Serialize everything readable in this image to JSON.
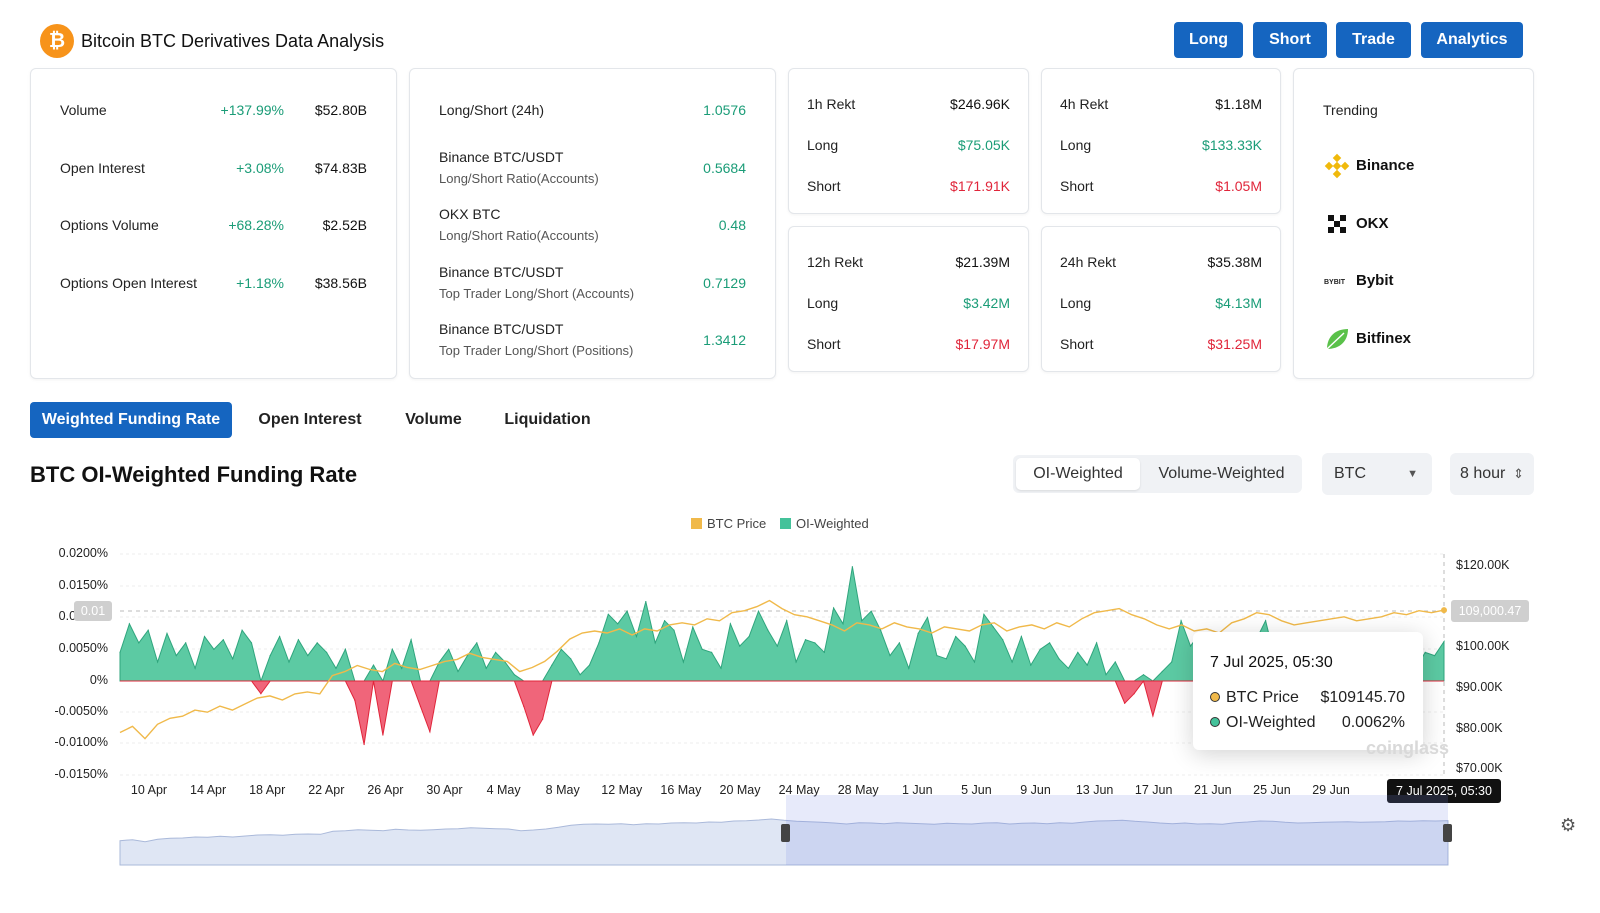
{
  "header": {
    "logo_glyph": "₿",
    "title": "Bitcoin BTC Derivatives Data Analysis",
    "buttons": [
      "Long",
      "Short",
      "Trade",
      "Analytics"
    ]
  },
  "colors": {
    "accent": "#1565c0",
    "positive": "#1a9c77",
    "negative": "#e0253a",
    "price_line": "#f0b94a",
    "oi_fill": "#44c29a"
  },
  "market": {
    "rows": [
      {
        "label": "Volume",
        "change": "+137.99%",
        "value": "$52.80B"
      },
      {
        "label": "Open Interest",
        "change": "+3.08%",
        "value": "$74.83B"
      },
      {
        "label": "Options Volume",
        "change": "+68.28%",
        "value": "$2.52B"
      },
      {
        "label": "Options Open Interest",
        "change": "+1.18%",
        "value": "$38.56B"
      }
    ]
  },
  "ratios": {
    "rows": [
      {
        "label": "Long/Short (24h)",
        "sub": "",
        "value": "1.0576"
      },
      {
        "label": "Binance BTC/USDT",
        "sub": "Long/Short Ratio(Accounts)",
        "value": "0.5684"
      },
      {
        "label": "OKX BTC",
        "sub": "Long/Short Ratio(Accounts)",
        "value": "0.48"
      },
      {
        "label": "Binance BTC/USDT",
        "sub": "Top Trader Long/Short (Accounts)",
        "value": "0.7129"
      },
      {
        "label": "Binance BTC/USDT",
        "sub": "Top Trader Long/Short (Positions)",
        "value": "1.3412"
      }
    ]
  },
  "rekt": [
    {
      "title": "1h Rekt",
      "total": "$246.96K",
      "long_label": "Long",
      "long": "$75.05K",
      "short_label": "Short",
      "short": "$171.91K"
    },
    {
      "title": "4h Rekt",
      "total": "$1.18M",
      "long_label": "Long",
      "long": "$133.33K",
      "short_label": "Short",
      "short": "$1.05M"
    },
    {
      "title": "12h Rekt",
      "total": "$21.39M",
      "long_label": "Long",
      "long": "$3.42M",
      "short_label": "Short",
      "short": "$17.97M"
    },
    {
      "title": "24h Rekt",
      "total": "$35.38M",
      "long_label": "Long",
      "long": "$4.13M",
      "short_label": "Short",
      "short": "$31.25M"
    }
  ],
  "trending": {
    "title": "Trending",
    "items": [
      "Binance",
      "OKX",
      "Bybit",
      "Bitfinex"
    ],
    "bybit_logo_text": "BYBIT"
  },
  "tabs": [
    "Weighted Funding Rate",
    "Open Interest",
    "Volume",
    "Liquidation"
  ],
  "chart_header": {
    "title": "BTC OI-Weighted Funding Rate",
    "seg": [
      "OI-Weighted",
      "Volume-Weighted"
    ],
    "coin": "BTC",
    "interval": "8 hour"
  },
  "legend": [
    "BTC Price",
    "OI-Weighted"
  ],
  "tooltip": {
    "date": "7 Jul 2025, 05:30",
    "price_label": "BTC Price",
    "price": "$109145.70",
    "oi_label": "OI-Weighted",
    "oi": "0.0062%"
  },
  "tags": {
    "left": "0.01",
    "right": "109,000.47",
    "x": "7 Jul 2025, 05:30"
  },
  "watermark": "coinglass",
  "chart_data": {
    "type": "area",
    "y_left_ticks": [
      "0.0200%",
      "0.0150%",
      "0.0100%",
      "0.0050%",
      "0%",
      "-0.0050%",
      "-0.0100%",
      "-0.0150%"
    ],
    "y_right_ticks": [
      "$120.00K",
      "$100.00K",
      "$90.00K",
      "$80.00K",
      "$70.00K"
    ],
    "x_ticks": [
      "10 Apr",
      "14 Apr",
      "18 Apr",
      "22 Apr",
      "26 Apr",
      "30 Apr",
      "4 May",
      "8 May",
      "12 May",
      "16 May",
      "20 May",
      "24 May",
      "28 May",
      "1 Jun",
      "5 Jun",
      "9 Jun",
      "13 Jun",
      "17 Jun",
      "21 Jun",
      "25 Jun",
      "29 Jun",
      "3"
    ],
    "ylim_left": [
      -0.015,
      0.02
    ],
    "ylim_right": [
      70000,
      120000
    ],
    "series": [
      {
        "name": "OI-Weighted",
        "unit": "%",
        "values": [
          0.0045,
          0.009,
          0.006,
          0.008,
          0.003,
          0.0075,
          0.004,
          0.006,
          0.002,
          0.007,
          0.005,
          0.0065,
          0.0035,
          0.008,
          0.006,
          -0.002,
          0.004,
          0.007,
          0.003,
          0.0065,
          0.004,
          0.006,
          0.0045,
          0.002,
          0.005,
          -0.003,
          -0.01,
          0.0025,
          -0.0085,
          0.005,
          0.002,
          0.0065,
          -0.004,
          -0.008,
          0.003,
          0.005,
          0.0015,
          0.004,
          0.006,
          0.002,
          0.0045,
          0.003,
          0.001,
          -0.004,
          -0.0085,
          -0.006,
          0.0025,
          0.005,
          0.0035,
          0.001,
          0.0025,
          0.006,
          0.0105,
          0.009,
          0.011,
          0.007,
          0.0125,
          0.006,
          0.0095,
          0.008,
          0.003,
          0.0085,
          0.005,
          0.0045,
          0.002,
          0.009,
          0.0055,
          0.007,
          0.011,
          0.008,
          0.0055,
          0.0095,
          0.003,
          0.0065,
          0.006,
          0.0045,
          0.0115,
          0.009,
          0.018,
          0.0095,
          0.011,
          0.008,
          0.004,
          0.006,
          0.002,
          0.0075,
          0.01,
          0.004,
          0.0035,
          0.007,
          0.0055,
          0.003,
          0.0105,
          0.0085,
          0.0065,
          0.003,
          0.007,
          0.0025,
          0.005,
          0.006,
          0.0035,
          0.002,
          0.0045,
          0.0025,
          0.006,
          0.001,
          0.003,
          -0.0035,
          -0.002,
          0.001,
          -0.0055,
          0.0015,
          0.003,
          0.0095,
          0.0055,
          0.0075,
          0.006,
          0.0025,
          0.005,
          0.0045,
          0.003,
          0.0065,
          0.0095,
          0.0035,
          0.0055,
          0.0015,
          -0.001,
          0.005,
          0.0045,
          0.0035,
          0.007,
          0.005,
          0.002,
          0.003,
          0.0045,
          0.0065,
          0.0055,
          0.003,
          0.002,
          0.0045,
          0.004,
          0.0062
        ]
      },
      {
        "name": "BTC Price",
        "unit": "$",
        "values": [
          79000,
          80500,
          77500,
          81000,
          82500,
          83000,
          84500,
          84000,
          85500,
          84500,
          86000,
          87500,
          88000,
          87000,
          88500,
          89000,
          88500,
          93000,
          94000,
          95500,
          94500,
          94000,
          96000,
          95000,
          94500,
          95500,
          96500,
          97000,
          98500,
          97500,
          97000,
          96500,
          94000,
          95000,
          96500,
          99000,
          102000,
          103500,
          104000,
          103500,
          104500,
          103000,
          104500,
          104000,
          105500,
          106000,
          105500,
          107000,
          106500,
          108500,
          109000,
          110000,
          111500,
          109500,
          108000,
          107500,
          106500,
          105500,
          104000,
          106000,
          105500,
          104500,
          106000,
          105000,
          104500,
          103500,
          105000,
          104500,
          104000,
          105500,
          106000,
          104000,
          105000,
          105500,
          104500,
          106000,
          105000,
          107000,
          108500,
          109000,
          109500,
          108000,
          107000,
          105500,
          104500,
          105500,
          104000,
          104500,
          103500,
          106000,
          107000,
          108500,
          108000,
          106500,
          105500,
          106000,
          106500,
          107000,
          107500,
          106500,
          107000,
          107500,
          108500,
          108000,
          109000,
          108500,
          109145
        ]
      }
    ]
  }
}
